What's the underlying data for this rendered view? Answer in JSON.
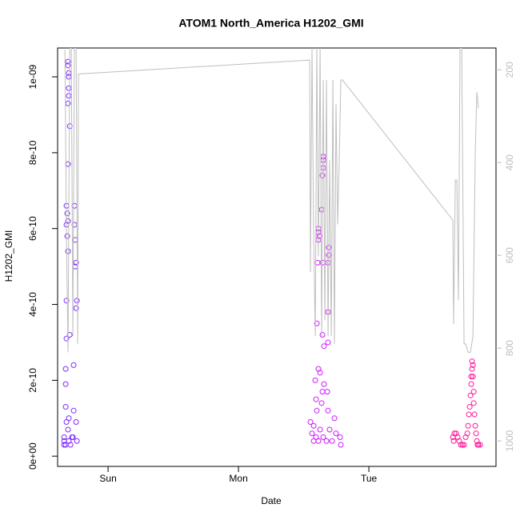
{
  "chart_data": {
    "type": "scatter",
    "title": "ATOM1 North_America H1202_GMI",
    "x_label": "Date",
    "y_label": "H1202_GMI",
    "xlim": [
      0.613,
      3.975
    ],
    "xticks": [
      {
        "value": 1,
        "label": "Sun"
      },
      {
        "value": 2,
        "label": "Mon"
      },
      {
        "value": 3,
        "label": "Tue"
      }
    ],
    "ylim": [
      -2.7e-11,
      1.076e-09
    ],
    "yticks": [
      {
        "value": 0,
        "label": "0e+00"
      },
      {
        "value": 2e-10,
        "label": "2e-10"
      },
      {
        "value": 4e-10,
        "label": "4e-10"
      },
      {
        "value": 6e-10,
        "label": "6e-10"
      },
      {
        "value": 8e-10,
        "label": "8e-10"
      },
      {
        "value": 1e-09,
        "label": "1e-09"
      }
    ],
    "y2lim": [
      1055,
      153
    ],
    "y2ticks": [
      200,
      400,
      600,
      800,
      1000
    ],
    "y2_color": "#bebebe",
    "series": [
      {
        "type": "scatter",
        "color": "#7f2bff",
        "x": [
          0.693,
          0.693,
          0.699,
          0.699,
          0.699,
          0.699,
          0.693,
          0.706,
          0.693,
          0.681,
          0.687,
          0.693,
          0.681,
          0.687,
          0.693,
          0.742,
          0.742,
          0.748,
          0.755,
          0.748,
          0.761,
          0.755,
          0.681,
          0.706,
          0.681,
          0.736,
          0.675,
          0.675,
          0.675,
          0.736,
          0.681,
          0.699,
          0.755,
          0.693,
          0.663,
          0.724,
          0.73,
          0.663,
          0.761,
          0.699,
          0.675,
          0.712,
          0.663
        ],
        "values": [
          1.04e-09,
          1.03e-09,
          1.01e-09,
          1e-09,
          9.7e-10,
          9.5e-10,
          9.3e-10,
          8.7e-10,
          7.7e-10,
          6.6e-10,
          6.4e-10,
          6.2e-10,
          6.1e-10,
          5.8e-10,
          5.4e-10,
          6.6e-10,
          6.1e-10,
          5.7e-10,
          5.1e-10,
          5e-10,
          4.1e-10,
          3.9e-10,
          4.1e-10,
          3.2e-10,
          3.1e-10,
          2.4e-10,
          2.3e-10,
          1.9e-10,
          1.3e-10,
          1.2e-10,
          9e-11,
          1e-10,
          9e-11,
          7e-11,
          5e-11,
          5e-11,
          5e-11,
          4e-11,
          4e-11,
          4e-11,
          3e-11,
          3e-11,
          3e-11
        ]
      },
      {
        "type": "scatter",
        "color": "#d11aff",
        "x": [
          2.65,
          2.65,
          2.65,
          2.644,
          2.638,
          2.613,
          2.613,
          2.62,
          2.613,
          2.693,
          2.693,
          2.687,
          2.644,
          2.607,
          2.687,
          2.601,
          2.644,
          2.687,
          2.656,
          2.613,
          2.626,
          2.589,
          2.656,
          2.644,
          2.681,
          2.595,
          2.638,
          2.601,
          2.687,
          2.552,
          2.736,
          2.577,
          2.626,
          2.699,
          2.748,
          2.564,
          2.65,
          2.595,
          2.779,
          2.718,
          2.613,
          2.785,
          2.577,
          2.675
        ],
        "values": [
          7.9e-10,
          7.8e-10,
          7.6e-10,
          7.4e-10,
          6.5e-10,
          6e-10,
          5.9e-10,
          5.8e-10,
          5.7e-10,
          5.5e-10,
          5.3e-10,
          5.1e-10,
          5.1e-10,
          5.1e-10,
          3.8e-10,
          3.5e-10,
          3.2e-10,
          3e-10,
          2.9e-10,
          2.3e-10,
          2.2e-10,
          2e-10,
          1.9e-10,
          1.7e-10,
          1.7e-10,
          1.5e-10,
          1.4e-10,
          1.2e-10,
          1.2e-10,
          9e-11,
          1e-10,
          8e-11,
          7e-11,
          7e-11,
          6e-11,
          6e-11,
          5e-11,
          5e-11,
          5e-11,
          4e-11,
          4e-11,
          3e-11,
          4e-11,
          4e-11
        ]
      },
      {
        "type": "scatter",
        "color": "#ff1a9c",
        "x": [
          3.656,
          3.669,
          3.681,
          3.693,
          3.706,
          3.718,
          3.73,
          3.742,
          3.755,
          3.761,
          3.767,
          3.773,
          3.779,
          3.785,
          3.785,
          3.791,
          3.791,
          3.798,
          3.798,
          3.804,
          3.804,
          3.81,
          3.816,
          3.822,
          3.828,
          3.834,
          3.84,
          3.853,
          3.644,
          3.65
        ],
        "values": [
          6e-11,
          6e-11,
          5e-11,
          4e-11,
          3e-11,
          3e-11,
          3e-11,
          5e-11,
          6e-11,
          8e-11,
          1.1e-10,
          1.3e-10,
          1.6e-10,
          1.9e-10,
          2.1e-10,
          2.3e-10,
          2.5e-10,
          2.1e-10,
          2.4e-10,
          1.7e-10,
          1.4e-10,
          1.1e-10,
          8e-11,
          6e-11,
          4e-11,
          3e-11,
          3e-11,
          3e-11,
          5e-11,
          4e-11
        ]
      },
      {
        "type": "line",
        "axis": "y2",
        "color": "#bebebe",
        "x": [
          0.669,
          0.681,
          0.693,
          0.706,
          0.718,
          0.73,
          0.742,
          0.755,
          0.767,
          0.773,
          2.546,
          2.552,
          2.564,
          2.577,
          2.589,
          2.601,
          2.613,
          2.626,
          2.638,
          2.65,
          2.663,
          2.675,
          2.687,
          2.699,
          2.712,
          2.724,
          2.736,
          2.748,
          2.761,
          2.773,
          2.785,
          2.798,
          3.644,
          3.65,
          3.663,
          3.675,
          3.687,
          3.699,
          3.712,
          3.718,
          3.73,
          3.742,
          3.761,
          3.779,
          3.798,
          3.816,
          3.828,
          3.84
        ],
        "values": [
          157,
          567,
          809,
          153,
          153,
          774,
          153,
          153,
          791,
          209,
          179,
          636,
          153,
          567,
          774,
          153,
          602,
          153,
          774,
          222,
          740,
          222,
          774,
          395,
          774,
          222,
          791,
          274,
          533,
          395,
          222,
          222,
          524,
          748,
          438,
          438,
          697,
          153,
          153,
          360,
          791,
          791,
          809,
          809,
          774,
          378,
          248,
          283
        ]
      }
    ]
  }
}
